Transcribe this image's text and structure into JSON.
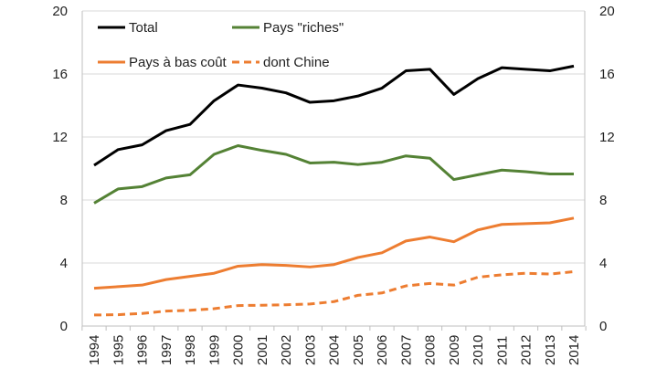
{
  "chart_data": {
    "type": "line",
    "title": "",
    "xlabel": "",
    "ylabel": "",
    "x": [
      "1994",
      "1995",
      "1996",
      "1997",
      "1998",
      "1999",
      "2000",
      "2001",
      "2002",
      "2003",
      "2004",
      "2005",
      "2006",
      "2007",
      "2008",
      "2009",
      "2010",
      "2011",
      "2012",
      "2013",
      "2014"
    ],
    "ylim": [
      0,
      20
    ],
    "y_ticks": [
      "0",
      "4",
      "8",
      "12",
      "16",
      "20"
    ],
    "secondary_y_ticks": [
      "0",
      "4",
      "8",
      "12",
      "16",
      "20"
    ],
    "grid": "horizontal",
    "legend_position": "top",
    "series": [
      {
        "name": "Total",
        "color": "#000000",
        "dash": false,
        "values": [
          10.2,
          11.2,
          11.5,
          12.4,
          12.8,
          14.3,
          15.3,
          15.1,
          14.8,
          14.2,
          14.3,
          14.6,
          15.1,
          16.2,
          16.3,
          14.7,
          15.7,
          16.4,
          16.3,
          16.2,
          16.5
        ]
      },
      {
        "name": "Pays \"riches\"",
        "color": "#548235",
        "dash": false,
        "values": [
          7.8,
          8.7,
          8.85,
          9.4,
          9.6,
          10.9,
          11.45,
          11.15,
          10.9,
          10.35,
          10.4,
          10.25,
          10.4,
          10.8,
          10.65,
          9.3,
          9.6,
          9.9,
          9.8,
          9.65,
          9.65
        ]
      },
      {
        "name": "Pays à bas coût",
        "color": "#ED7D31",
        "dash": false,
        "values": [
          2.4,
          2.5,
          2.6,
          2.95,
          3.15,
          3.35,
          3.8,
          3.9,
          3.85,
          3.75,
          3.9,
          4.35,
          4.65,
          5.4,
          5.65,
          5.35,
          6.1,
          6.45,
          6.5,
          6.55,
          6.85
        ]
      },
      {
        "name": "dont Chine",
        "color": "#ED7D31",
        "dash": true,
        "values": [
          0.7,
          0.72,
          0.8,
          0.95,
          1.0,
          1.1,
          1.3,
          1.32,
          1.35,
          1.4,
          1.55,
          1.95,
          2.1,
          2.55,
          2.7,
          2.6,
          3.1,
          3.25,
          3.35,
          3.3,
          3.45
        ]
      }
    ]
  }
}
